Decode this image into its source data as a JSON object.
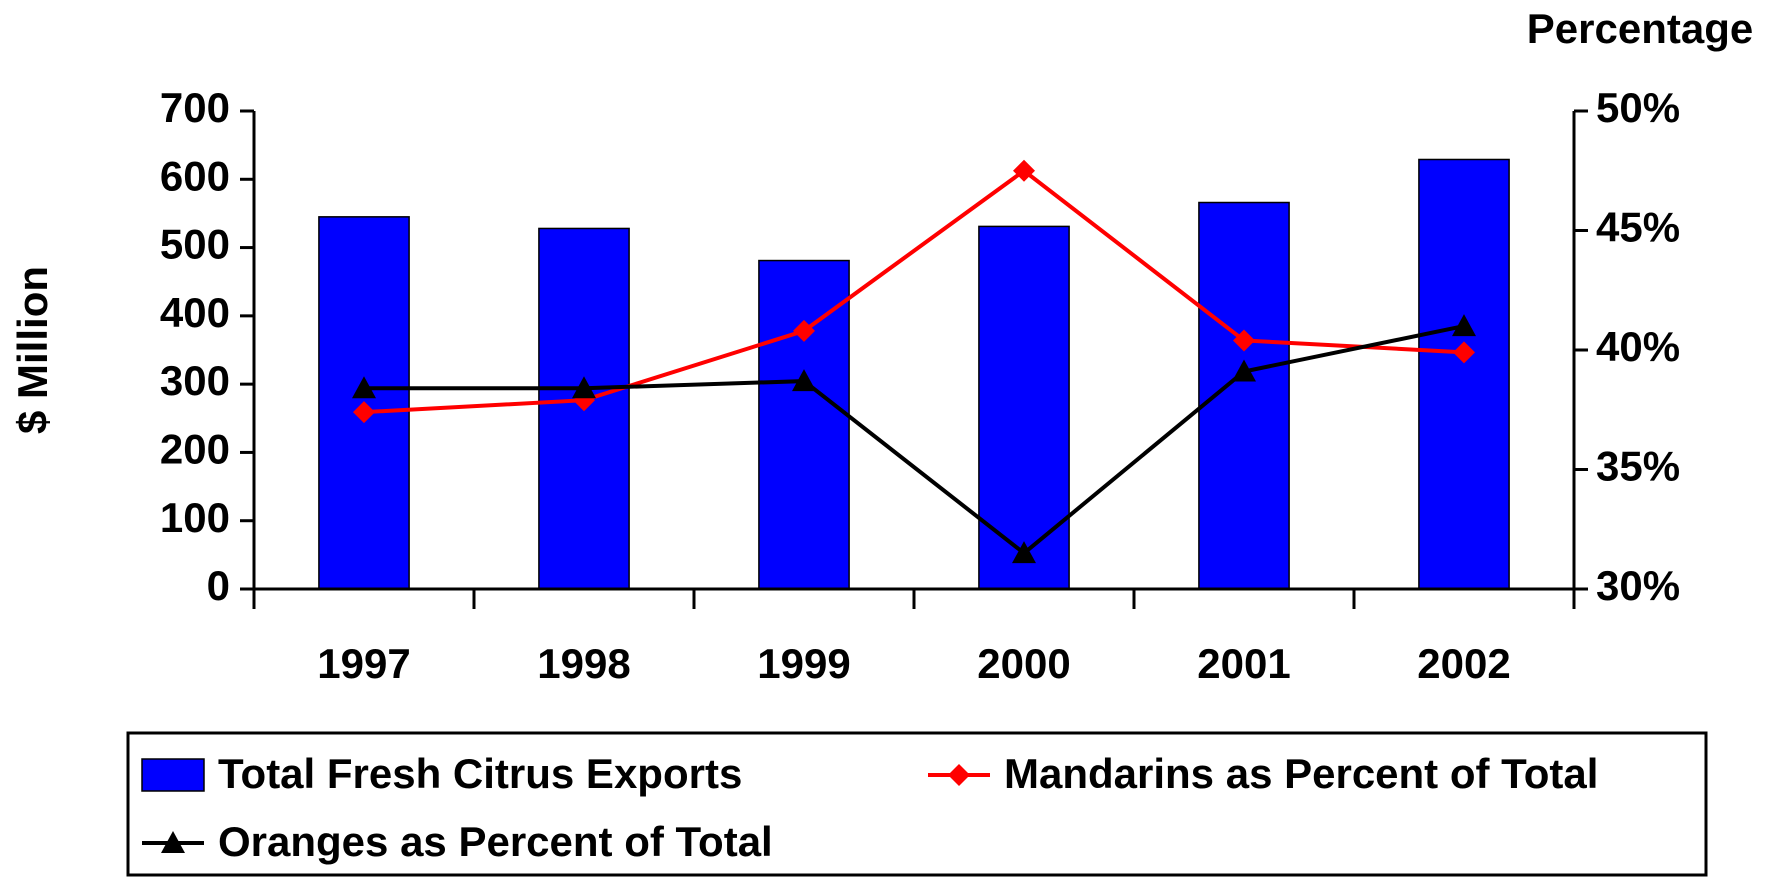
{
  "chart_data": {
    "type": "bar",
    "categories": [
      "1997",
      "1998",
      "1999",
      "2000",
      "2001",
      "2002"
    ],
    "ylabel": "$ Million",
    "y2label": "Percentage",
    "ylim": [
      0,
      700
    ],
    "yticks": [
      0,
      100,
      200,
      300,
      400,
      500,
      600,
      700
    ],
    "y2lim": [
      30,
      50
    ],
    "y2ticks": [
      {
        "value": 30,
        "label": "30%"
      },
      {
        "value": 35,
        "label": "35%"
      },
      {
        "value": 40,
        "label": "40%"
      },
      {
        "value": 45,
        "label": "45%"
      },
      {
        "value": 50,
        "label": "50%"
      }
    ],
    "legend": "bottom",
    "series": [
      {
        "name": "Total Fresh Citrus Exports",
        "type": "bar",
        "color": "#0000ff",
        "values": [
          545,
          528,
          481,
          531,
          566,
          629
        ]
      },
      {
        "name": "Mandarins as Percent of Total",
        "type": "line",
        "marker": "diamond",
        "axis": "y2",
        "color": "#ff0000",
        "values": [
          37.4,
          37.9,
          40.8,
          47.5,
          40.4,
          39.9
        ]
      },
      {
        "name": "Oranges as Percent of Total",
        "type": "line",
        "marker": "triangle",
        "axis": "y2",
        "color": "#000000",
        "values": [
          38.4,
          38.4,
          38.7,
          31.5,
          39.1,
          41.0
        ]
      }
    ]
  }
}
